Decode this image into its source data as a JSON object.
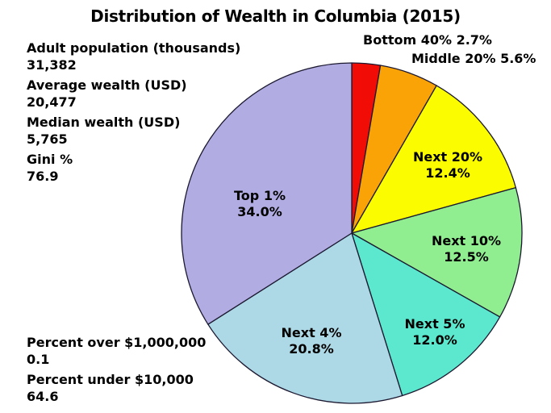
{
  "title": "Distribution of Wealth in Columbia (2015)",
  "stats_top": [
    {
      "label": "Adult population (thousands)",
      "value": "31,382"
    },
    {
      "label": "Average wealth (USD)",
      "value": "20,477"
    },
    {
      "label": "Median wealth (USD)",
      "value": "5,765"
    },
    {
      "label": "Gini %",
      "value": "76.9"
    }
  ],
  "stats_bottom": [
    {
      "label": "Percent over $1,000,000",
      "value": "0.1"
    },
    {
      "label": "Percent under $10,000",
      "value": "64.6"
    }
  ],
  "colors": {
    "background": "#ffffff",
    "text": "#000000",
    "wedge_outline": "#1b1830"
  },
  "chart_data": {
    "type": "pie",
    "title": "Distribution of Wealth in Columbia (2015)",
    "start_angle_deg": 90,
    "direction": "clockwise",
    "legend_position": "none",
    "slices": [
      {
        "label": "Bottom 40%",
        "value": 2.7,
        "color": "#f10c06",
        "label_placement": "outside"
      },
      {
        "label": "Middle 20%",
        "value": 5.6,
        "color": "#faa307",
        "label_placement": "outside"
      },
      {
        "label": "Next 20%",
        "value": 12.4,
        "color": "#fcfc00",
        "label_placement": "inside"
      },
      {
        "label": "Next 10%",
        "value": 12.5,
        "color": "#90ee90",
        "label_placement": "inside"
      },
      {
        "label": "Next 5%",
        "value": 12.0,
        "color": "#5ce8ce",
        "label_placement": "inside"
      },
      {
        "label": "Next 4%",
        "value": 20.8,
        "color": "#add8e6",
        "label_placement": "inside"
      },
      {
        "label": "Top 1%",
        "value": 34.0,
        "color": "#b1ace2",
        "label_placement": "inside"
      }
    ]
  }
}
